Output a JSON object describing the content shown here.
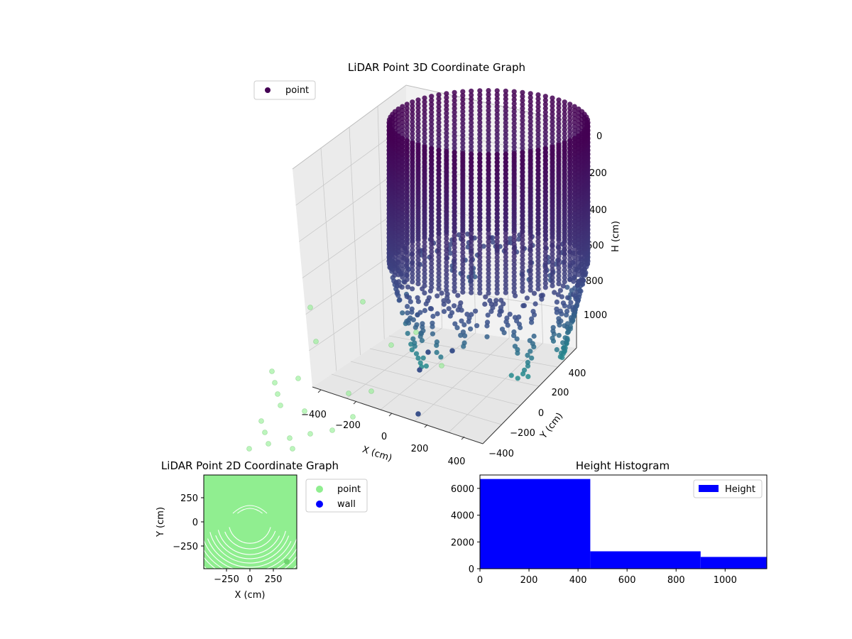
{
  "colors": {
    "pane": "#f2f2f2",
    "pane_dark": "#e6e6e6",
    "grid": "#c9c9c9",
    "viridis_top": "#440154",
    "viridis_mid": "#3b528b",
    "viridis_low": "#21918c",
    "light_green": "#90ee90",
    "wall": "#0000ff",
    "hist": "#0000ff"
  },
  "chart_data": [
    {
      "type": "scatter",
      "title": "LiDAR Point 3D Coordinate Graph",
      "xlabel": "X (cm)",
      "ylabel": "Y (cm)",
      "zlabel": "H (cm)",
      "x_ticks": [
        "−400",
        "−200",
        "0",
        "200",
        "400"
      ],
      "y_ticks": [
        "−400",
        "−200",
        "0",
        "200",
        "400"
      ],
      "z_ticks": [
        "0",
        "200",
        "400",
        "600",
        "800",
        "1000"
      ],
      "xlim": [
        -450,
        450
      ],
      "ylim": [
        -450,
        450
      ],
      "zlim": [
        0,
        1180
      ],
      "z_inverted": true,
      "legend": {
        "label": "point",
        "placement": "upper-left"
      },
      "shape": {
        "type": "cylinder",
        "radius": 240,
        "center": [
          0,
          0
        ],
        "h_top": 0,
        "h_dense_bottom": 600,
        "h_sparse_bottom": 1050
      },
      "colormap": "viridis"
    },
    {
      "type": "scatter",
      "title": "LiDAR Point 2D Coordinate Graph",
      "xlabel": "X (cm)",
      "ylabel": "Y (cm)",
      "x_ticks": [
        "−250",
        "0",
        "250"
      ],
      "y_ticks": [
        "250",
        "0",
        "−250"
      ],
      "xlim": [
        -500,
        500
      ],
      "ylim": [
        -500,
        500
      ],
      "legend": [
        "point",
        "wall"
      ],
      "legend_placement": "outside-right"
    },
    {
      "type": "bar",
      "title": "Height Histogram",
      "series": [
        {
          "name": "Height",
          "bins": [
            [
              0,
              450
            ],
            [
              450,
              900
            ],
            [
              900,
              1170
            ]
          ],
          "values": [
            6700,
            1300,
            880
          ]
        }
      ],
      "x_ticks": [
        "0",
        "200",
        "400",
        "600",
        "800",
        "1000"
      ],
      "y_ticks": [
        "0",
        "2000",
        "4000",
        "6000"
      ],
      "xlim": [
        0,
        1170
      ],
      "ylim": [
        0,
        7000
      ],
      "legend_placement": "top-right"
    }
  ]
}
